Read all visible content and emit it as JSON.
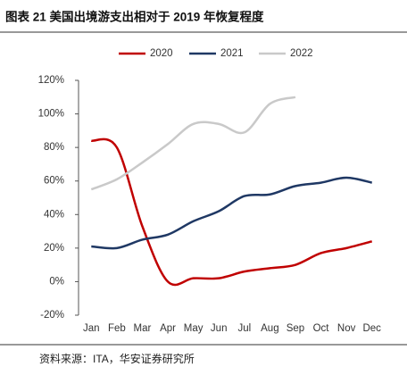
{
  "chart_data": {
    "type": "line",
    "title": "图表 21  美国出境游支出相对于 2019 年恢复程度",
    "source": "资料来源：ITA，华安证券研究所",
    "categories": [
      "Jan",
      "Feb",
      "Mar",
      "Apr",
      "May",
      "Jun",
      "Jul",
      "Aug",
      "Sep",
      "Oct",
      "Nov",
      "Dec"
    ],
    "series": [
      {
        "name": "2020",
        "color": "#c00000",
        "values": [
          84,
          80,
          33,
          0,
          2,
          2,
          6,
          8,
          10,
          17,
          20,
          24
        ]
      },
      {
        "name": "2021",
        "color": "#1f3864",
        "values": [
          21,
          20,
          25,
          28,
          36,
          42,
          51,
          52,
          57,
          59,
          62,
          59
        ]
      },
      {
        "name": "2022",
        "color": "#c9c9c9",
        "values": [
          55,
          61,
          71,
          82,
          94,
          94,
          89,
          106,
          110,
          null,
          null,
          null
        ]
      }
    ],
    "ylim": [
      -20,
      120
    ],
    "yticks": [
      {
        "value": -20,
        "label": "-20%"
      },
      {
        "value": 0,
        "label": "0%"
      },
      {
        "value": 20,
        "label": "20%"
      },
      {
        "value": 40,
        "label": "40%"
      },
      {
        "value": 60,
        "label": "60%"
      },
      {
        "value": 80,
        "label": "80%"
      },
      {
        "value": 100,
        "label": "100%"
      },
      {
        "value": 120,
        "label": "120%"
      }
    ],
    "legend": "top"
  }
}
